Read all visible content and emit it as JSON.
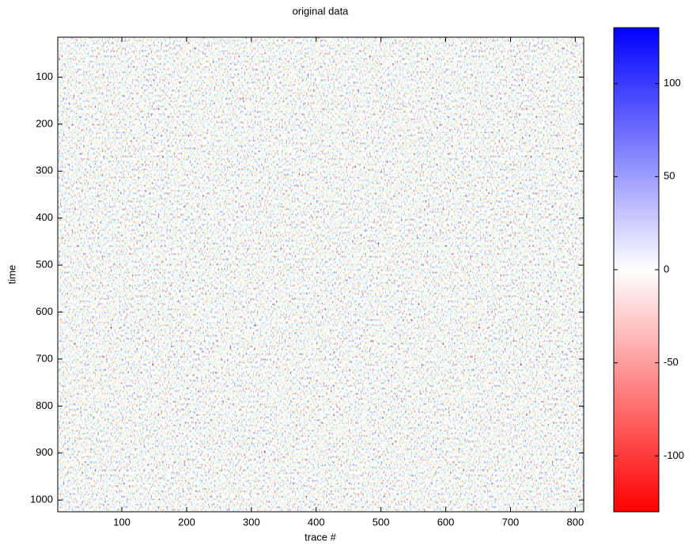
{
  "chart_data": {
    "type": "heatmap",
    "title": "original data",
    "x_label": "trace #",
    "y_label": "time",
    "xlim": [
      1,
      813
    ],
    "ylim": [
      15,
      1025
    ],
    "xticks": [
      100,
      200,
      300,
      400,
      500,
      600,
      700,
      800
    ],
    "yticks": [
      100,
      200,
      300,
      400,
      500,
      600,
      700,
      800,
      900,
      1000
    ],
    "colorbar": {
      "lim": [
        -130,
        130
      ],
      "ticks": [
        -100,
        -50,
        0,
        50,
        100
      ],
      "colors": [
        "#ff0000",
        "#ffffff",
        "#0000ff"
      ]
    }
  }
}
